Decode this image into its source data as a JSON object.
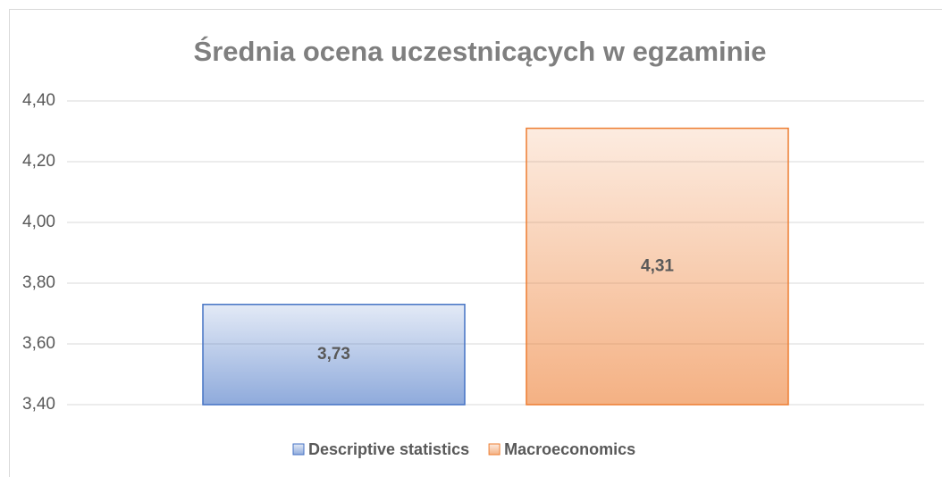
{
  "chart_data": {
    "type": "bar",
    "title": "Średnia ocena uczestnicących w egzaminie",
    "categories": [
      null
    ],
    "series": [
      {
        "name": "Descriptive statistics",
        "color": "#4472c4",
        "values": [
          3.73
        ],
        "value_labels": [
          "3,73"
        ]
      },
      {
        "name": "Macroeconomics",
        "color": "#ed7d31",
        "values": [
          4.31
        ],
        "value_labels": [
          "4,31"
        ]
      }
    ],
    "ylim": [
      3.4,
      4.4
    ],
    "yticks": [
      {
        "value": 3.4,
        "label": "3,40"
      },
      {
        "value": 3.6,
        "label": "3,60"
      },
      {
        "value": 3.8,
        "label": "3,80"
      },
      {
        "value": 4.0,
        "label": "4,00"
      },
      {
        "value": 4.2,
        "label": "4,20"
      },
      {
        "value": 4.4,
        "label": "4,40"
      }
    ],
    "grid": true,
    "legend": "bottom"
  }
}
